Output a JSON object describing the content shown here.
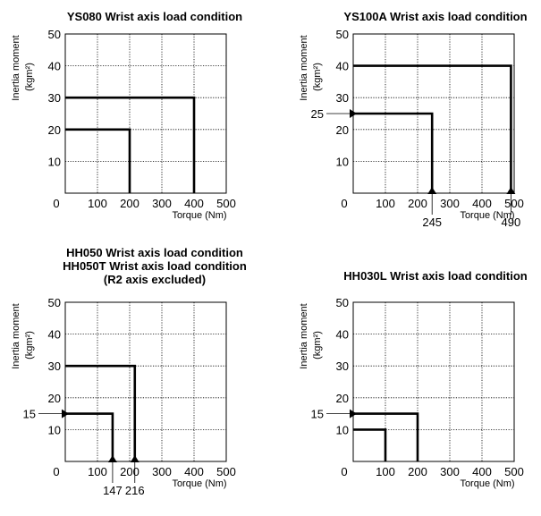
{
  "chart_data": [
    {
      "type": "line",
      "title_lines": [
        "YS080  Wrist axis load condition"
      ],
      "xlabel": "Torque (Nm)",
      "ylabel": "Inertia moment",
      "ylabel_unit": "(kgm²)",
      "xlim": [
        0,
        500
      ],
      "ylim": [
        0,
        50
      ],
      "x_ticks": [
        "0",
        "100",
        "200",
        "300",
        "400",
        "500"
      ],
      "y_ticks": [
        "10",
        "20",
        "30",
        "40",
        "50"
      ],
      "grid": true,
      "series": [
        {
          "x": [
            0,
            400,
            400
          ],
          "y": [
            30,
            30,
            0
          ]
        },
        {
          "x": [
            0,
            200,
            200
          ],
          "y": [
            20,
            20,
            0
          ]
        }
      ],
      "annotations": []
    },
    {
      "type": "line",
      "title_lines": [
        "YS100A  Wrist axis load condition"
      ],
      "xlabel": "Torque (Nm)",
      "ylabel": "Inertia moment",
      "ylabel_unit": "(kgm²)",
      "xlim": [
        0,
        500
      ],
      "ylim": [
        0,
        50
      ],
      "x_ticks": [
        "0",
        "100",
        "200",
        "300",
        "400",
        "500"
      ],
      "y_ticks": [
        "10",
        "20",
        "30",
        "40",
        "50"
      ],
      "grid": true,
      "series": [
        {
          "x": [
            0,
            490,
            490
          ],
          "y": [
            40,
            40,
            0
          ]
        },
        {
          "x": [
            0,
            245,
            245
          ],
          "y": [
            25,
            25,
            0
          ]
        }
      ],
      "annotations": [
        {
          "axis": "y",
          "value": 25,
          "label": "25"
        },
        {
          "axis": "x",
          "value": 245,
          "label": "245"
        },
        {
          "axis": "x",
          "value": 490,
          "label": "490"
        }
      ]
    },
    {
      "type": "line",
      "title_lines": [
        "HH050  Wrist axis load condition",
        "HH050T  Wrist axis load condition",
        "(R2 axis excluded)"
      ],
      "xlabel": "Torque (Nm)",
      "ylabel": "Inertia moment",
      "ylabel_unit": "(kgm²)",
      "xlim": [
        0,
        500
      ],
      "ylim": [
        0,
        50
      ],
      "x_ticks": [
        "0",
        "100",
        "200",
        "300",
        "400",
        "500"
      ],
      "y_ticks": [
        "10",
        "20",
        "30",
        "40",
        "50"
      ],
      "grid": true,
      "series": [
        {
          "x": [
            0,
            216,
            216
          ],
          "y": [
            30,
            30,
            0
          ]
        },
        {
          "x": [
            0,
            147,
            147
          ],
          "y": [
            15,
            15,
            0
          ]
        }
      ],
      "annotations": [
        {
          "axis": "y",
          "value": 15,
          "label": "15"
        },
        {
          "axis": "x",
          "value": 147,
          "label": "147"
        },
        {
          "axis": "x",
          "value": 216,
          "label": "216"
        }
      ]
    },
    {
      "type": "line",
      "title_lines": [
        "HH030L  Wrist axis load condition"
      ],
      "xlabel": "Torque (Nm)",
      "ylabel": "Inertia moment",
      "ylabel_unit": "(kgm²)",
      "xlim": [
        0,
        500
      ],
      "ylim": [
        0,
        50
      ],
      "x_ticks": [
        "0",
        "100",
        "200",
        "300",
        "400",
        "500"
      ],
      "y_ticks": [
        "10",
        "20",
        "30",
        "40",
        "50"
      ],
      "grid": true,
      "series": [
        {
          "x": [
            0,
            200,
            200
          ],
          "y": [
            15,
            15,
            0
          ]
        },
        {
          "x": [
            0,
            100,
            100
          ],
          "y": [
            10,
            10,
            0
          ]
        }
      ],
      "annotations": [
        {
          "axis": "y",
          "value": 15,
          "label": "15"
        }
      ]
    }
  ]
}
